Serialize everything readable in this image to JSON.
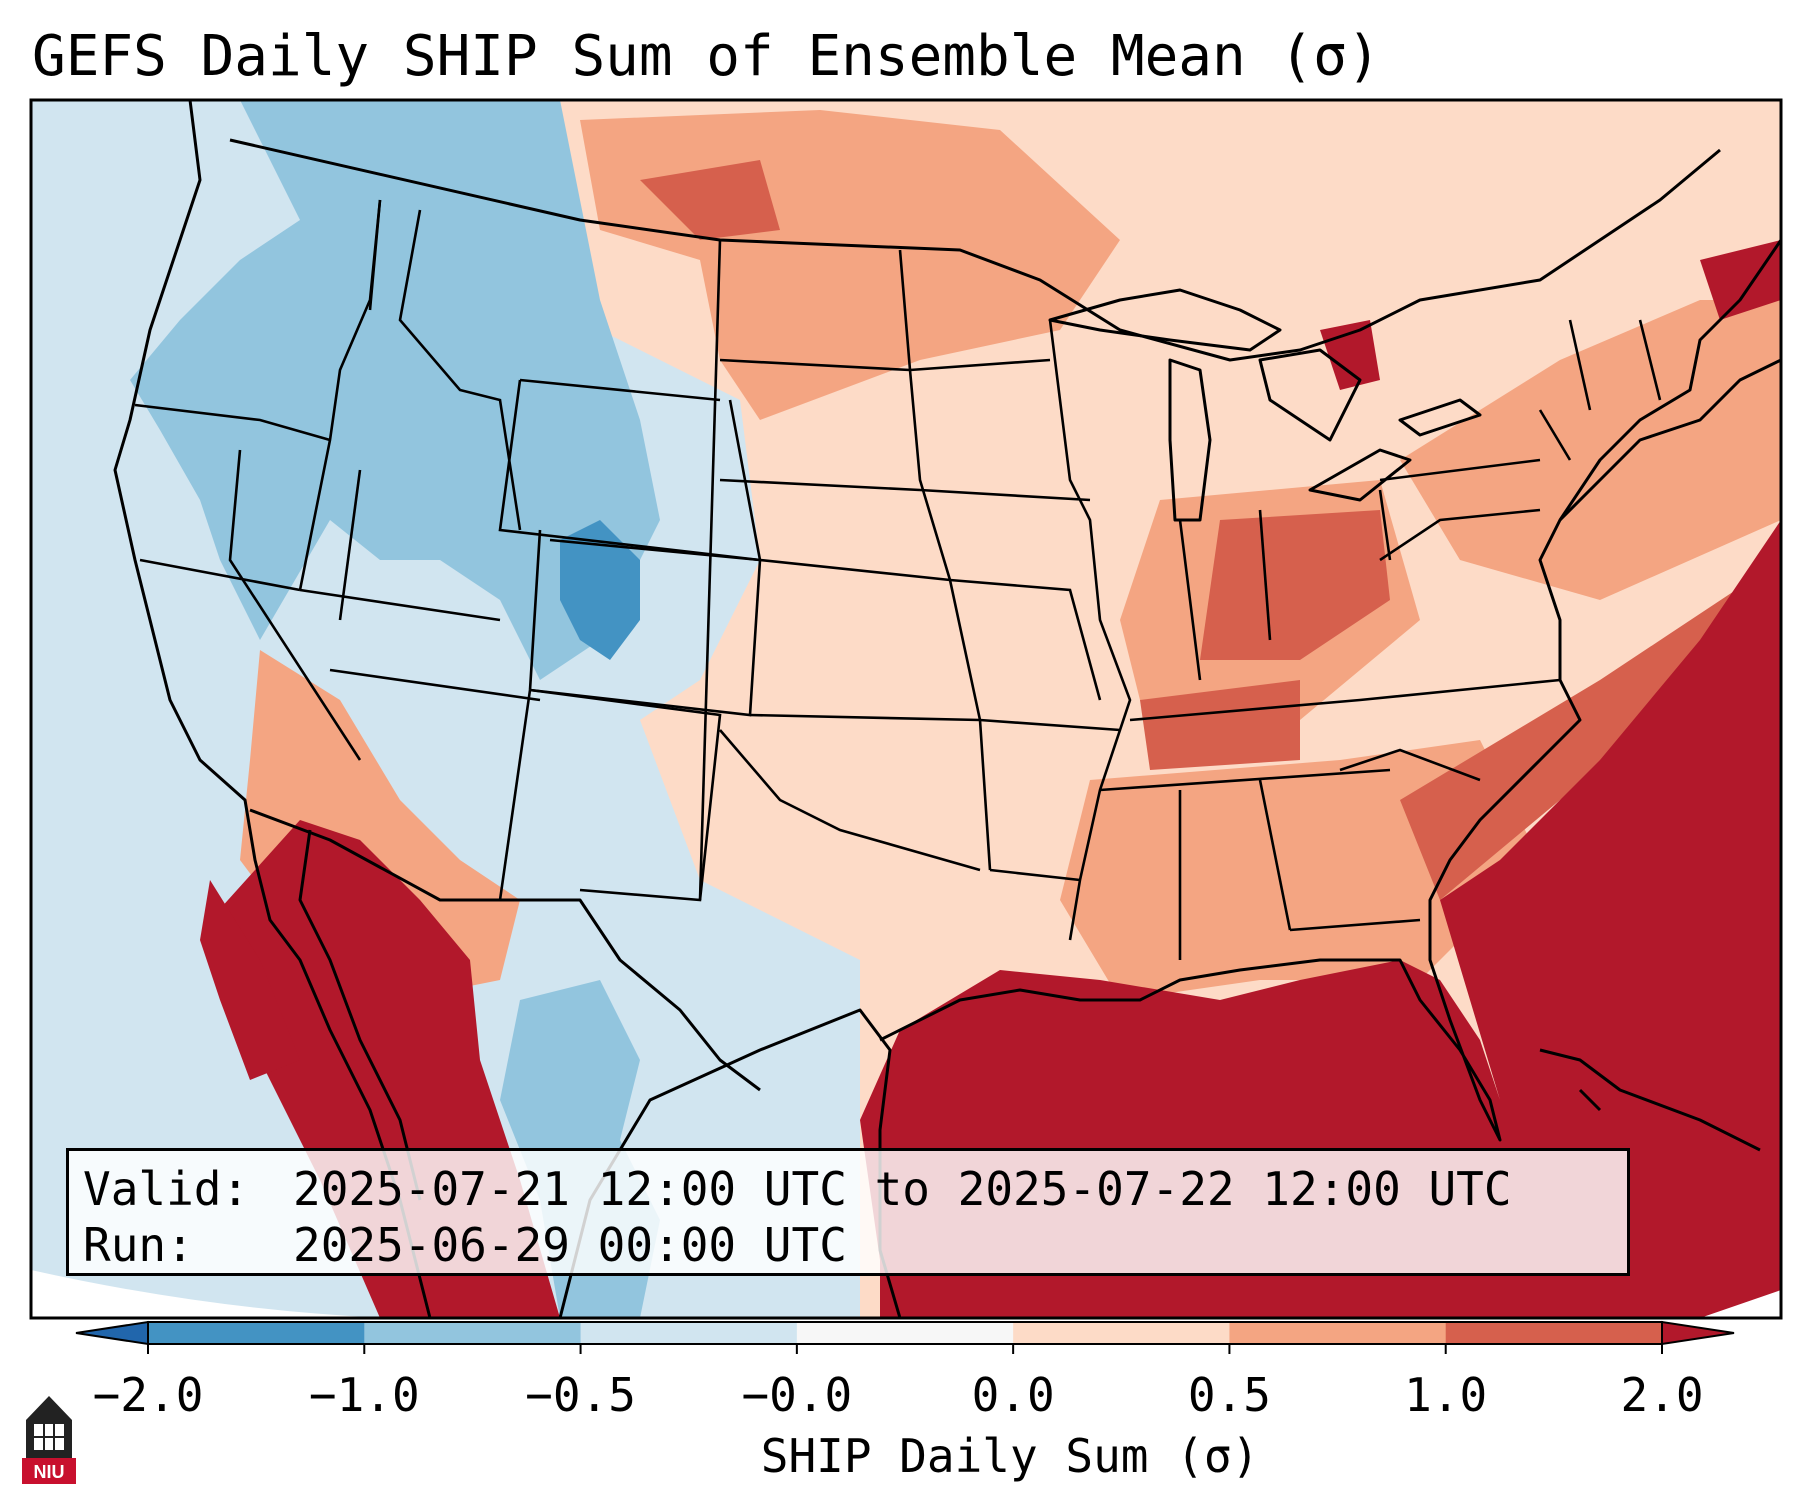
{
  "title": "GEFS Daily SHIP Sum of Ensemble Mean (σ)",
  "info": {
    "valid_label": "Valid:",
    "valid_value": "2025-07-21 12:00 UTC to 2025-07-22 12:00 UTC",
    "run_label": "Run:",
    "run_value": "2025-06-29 00:00 UTC"
  },
  "colorbar": {
    "label": "SHIP Daily Sum (σ)",
    "ticks": [
      "−2.0",
      "−1.0",
      "−0.5",
      "−0.0",
      "0.0",
      "0.5",
      "1.0",
      "2.0"
    ],
    "bins": [
      {
        "range": "-2.0 to -1.0",
        "color": "#4393c3"
      },
      {
        "range": "-1.0 to -0.5",
        "color": "#92c5de"
      },
      {
        "range": "-0.5 to -0.0",
        "color": "#d1e5f0"
      },
      {
        "range": "-0.0 to 0.0",
        "color": "#f7f7f7"
      },
      {
        "range": "0.0 to 0.5",
        "color": "#fddbc7"
      },
      {
        "range": "0.5 to 1.0",
        "color": "#f4a582"
      },
      {
        "range": "1.0 to 2.0",
        "color": "#d6604d"
      }
    ],
    "under_color": "#2166ac",
    "over_color": "#b2182b"
  },
  "logo": {
    "text": "NIU",
    "color": "#c8102e"
  }
}
